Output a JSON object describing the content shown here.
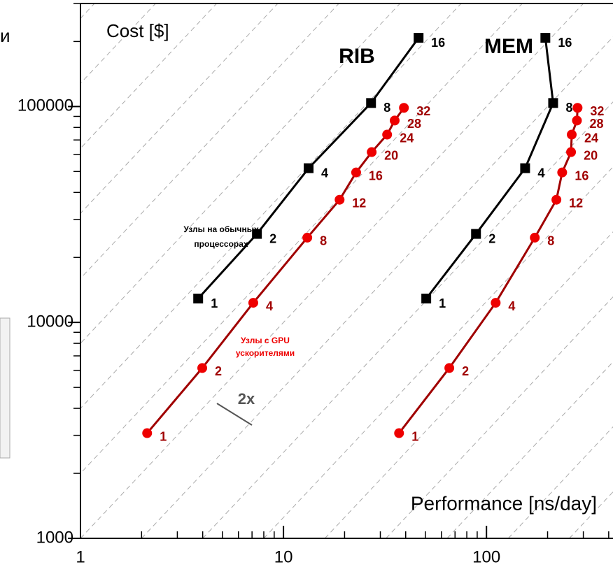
{
  "side_text": "и",
  "chart_data": {
    "type": "line",
    "log_x": true,
    "log_y": true,
    "x_label": "Performance [ns/day]",
    "y_label": "Cost [$]",
    "xlim": [
      1,
      420
    ],
    "ylim": [
      1000,
      300000
    ],
    "xticks": [
      1,
      10,
      100
    ],
    "yticks": [
      1000,
      10000,
      100000
    ],
    "group_labels": [
      "RIB",
      "MEM"
    ],
    "notes_cpu": [
      "Узлы на обычных",
      "процессорах"
    ],
    "notes_gpu": [
      "Узлы с GPU",
      "ускорителями"
    ],
    "slope_label": "2x",
    "series": [
      {
        "color": "#000000",
        "marker_color": "#000000",
        "marker": "square",
        "x": [
          3.8,
          7.4,
          13.3,
          27,
          46.3
        ],
        "values": [
          12900,
          25700,
          51800,
          103800,
          208000
        ],
        "nodes": [
          1,
          2,
          4,
          8,
          16
        ]
      },
      {
        "color": "#a00000",
        "marker_color": "#ee0000",
        "marker": "circle",
        "x": [
          2.13,
          3.98,
          7.1,
          13.1,
          18.9,
          22.8,
          27.2,
          32.4,
          35.3,
          39.2
        ],
        "values": [
          3070,
          6150,
          12330,
          24700,
          37000,
          49500,
          61500,
          74100,
          86100,
          98600
        ],
        "nodes": [
          1,
          2,
          4,
          8,
          12,
          16,
          20,
          24,
          28,
          32
        ]
      },
      {
        "color": "#000000",
        "marker_color": "#000000",
        "marker": "square",
        "x": [
          50.5,
          88.8,
          155,
          213,
          195
        ],
        "values": [
          12900,
          25700,
          51800,
          103800,
          208000
        ],
        "nodes": [
          1,
          2,
          4,
          8,
          16
        ]
      },
      {
        "color": "#a00000",
        "marker_color": "#ee0000",
        "marker": "circle",
        "x": [
          37.1,
          65.6,
          111,
          173,
          221,
          236,
          261,
          263,
          279,
          281
        ],
        "values": [
          3070,
          6150,
          12330,
          24700,
          37000,
          49500,
          61500,
          74100,
          86100,
          98600
        ],
        "nodes": [
          1,
          2,
          4,
          8,
          12,
          16,
          20,
          24,
          28,
          32
        ]
      }
    ]
  }
}
